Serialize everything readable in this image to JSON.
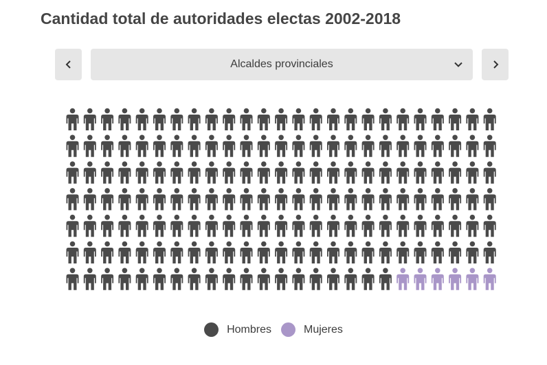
{
  "title": "Cantidad total de autoridades electas 2002-2018",
  "selector": {
    "value": "Alcaldes provinciales"
  },
  "icons": {
    "prev": "chevron-left-icon",
    "next": "chevron-right-icon",
    "caret": "chevron-down-icon",
    "person": "person-icon"
  },
  "colors": {
    "Hombres": "#4a4a4a",
    "Mujeres": "#a996c8",
    "button_bg": "#e6e6e6"
  },
  "legend": [
    {
      "label": "Hombres",
      "color": "#4a4a4a"
    },
    {
      "label": "Mujeres",
      "color": "#a996c8"
    }
  ],
  "chart_data": {
    "type": "pictogram",
    "rows": 7,
    "columns": 25,
    "series": [
      {
        "name": "Hombres",
        "count": 169,
        "color": "#4a4a4a"
      },
      {
        "name": "Mujeres",
        "count": 6,
        "color": "#a996c8"
      }
    ],
    "legend_position": "bottom-center"
  }
}
